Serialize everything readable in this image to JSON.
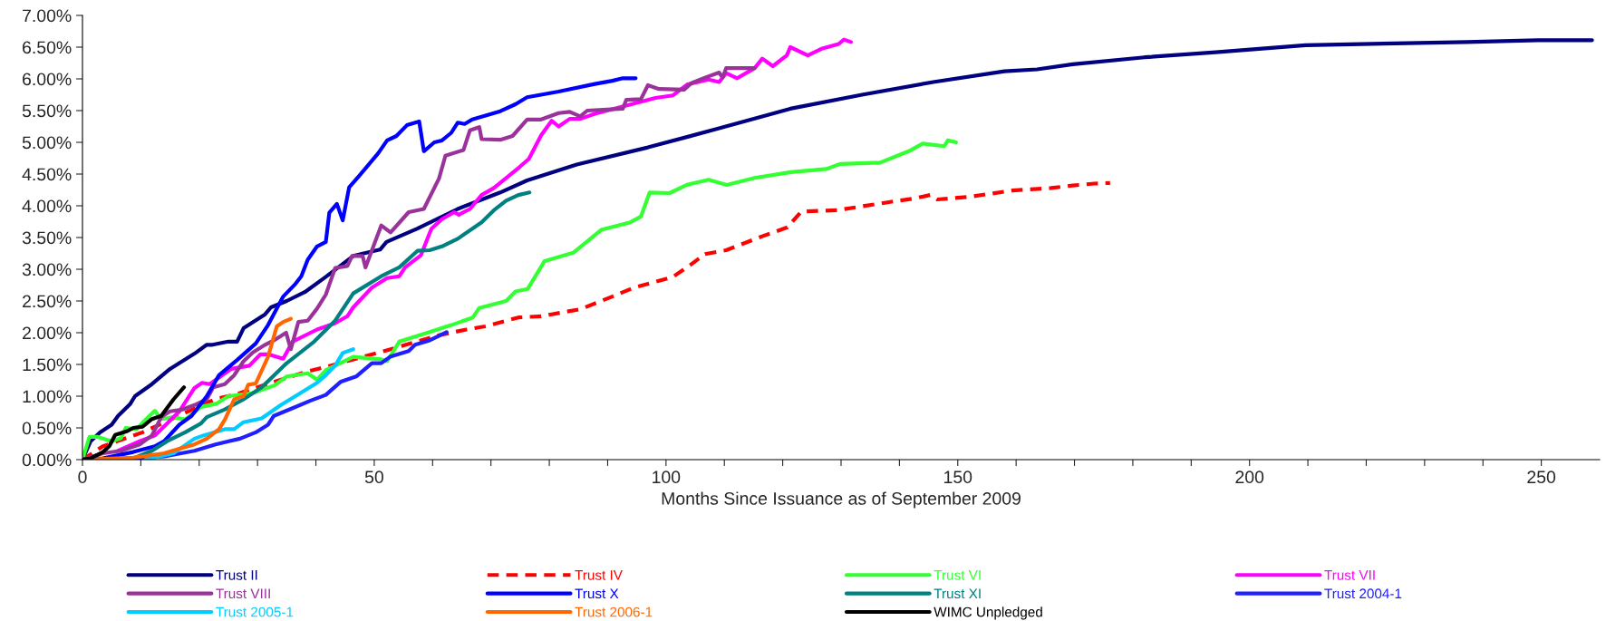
{
  "chart_data": {
    "type": "line",
    "xlabel": "Months Since Issuance as of September 2009",
    "xlim": [
      0,
      260
    ],
    "xticks": [
      0,
      {
        "value": 10,
        "label": null
      },
      {
        "value": 20,
        "label": null
      },
      {
        "value": 30,
        "label": null
      },
      {
        "value": 40,
        "label": null
      },
      50,
      {
        "value": 60,
        "label": null
      },
      {
        "value": 70,
        "label": null
      },
      {
        "value": 80,
        "label": null
      },
      {
        "value": 90,
        "label": null
      },
      100,
      {
        "value": 110,
        "label": null
      },
      {
        "value": 120,
        "label": null
      },
      {
        "value": 130,
        "label": null
      },
      {
        "value": 140,
        "label": null
      },
      150,
      {
        "value": 160,
        "label": null
      },
      {
        "value": 170,
        "label": null
      },
      {
        "value": 180,
        "label": null
      },
      {
        "value": 190,
        "label": null
      },
      200,
      {
        "value": 210,
        "label": null
      },
      {
        "value": 220,
        "label": null
      },
      {
        "value": 230,
        "label": null
      },
      {
        "value": 240,
        "label": null
      },
      250
    ],
    "ylim": [
      0,
      7
    ],
    "yticks": [
      {
        "value": 0,
        "label": "0.00%"
      },
      {
        "value": 0.5,
        "label": "0.50%"
      },
      {
        "value": 1,
        "label": "1.00%"
      },
      {
        "value": 1.5,
        "label": "1.50%"
      },
      {
        "value": 2,
        "label": "2.00%"
      },
      {
        "value": 2.5,
        "label": "2.50%"
      },
      {
        "value": 3,
        "label": "3.00%"
      },
      {
        "value": 3.5,
        "label": "3.50%"
      },
      {
        "value": 4,
        "label": "4.00%"
      },
      {
        "value": 4.5,
        "label": "4.50%"
      },
      {
        "value": 5,
        "label": "5.00%"
      },
      {
        "value": 5.5,
        "label": "5.50%"
      },
      {
        "value": 6,
        "label": "6.00%"
      },
      {
        "value": 6.5,
        "label": "6.50%"
      },
      {
        "value": 7,
        "label": "7.00%"
      }
    ],
    "grid": false,
    "legend": "bottom",
    "marker": "none",
    "series": [
      {
        "name": "Trust II",
        "color": "#000080",
        "x": [
          0,
          1.4,
          3,
          5,
          6.1,
          8.2,
          9,
          11.9,
          15,
          19.2,
          21.3,
          22.3,
          25,
          26.5,
          27.6,
          31.3,
          32.3,
          35,
          38.1,
          41.7,
          46.4,
          51,
          52.1,
          57.4,
          64.3,
          71.6,
          76.2,
          84.7,
          96.9,
          109.1,
          121.3,
          133.6,
          145.8,
          158,
          163.6,
          169.7,
          182,
          194.2,
          209.6,
          224.9,
          237.2,
          249.4,
          258.7
        ],
        "values": [
          0,
          0.29,
          0.43,
          0.55,
          0.69,
          0.88,
          1.0,
          1.19,
          1.43,
          1.67,
          1.81,
          1.81,
          1.86,
          1.86,
          2.07,
          2.29,
          2.4,
          2.5,
          2.64,
          2.88,
          3.21,
          3.31,
          3.43,
          3.64,
          3.95,
          4.21,
          4.4,
          4.65,
          4.92,
          5.22,
          5.53,
          5.75,
          5.95,
          6.12,
          6.15,
          6.23,
          6.34,
          6.42,
          6.53,
          6.56,
          6.58,
          6.61,
          6.61
        ]
      },
      {
        "name": "Trust IV",
        "color": "#ff0000",
        "line_style": "dashed",
        "x": [
          0,
          3.5,
          10.3,
          22.9,
          26,
          32.3,
          38.6,
          41.7,
          51.7,
          61.1,
          65.8,
          69,
          74.7,
          78.6,
          80.4,
          85.3,
          90.8,
          94.5,
          101.2,
          104.2,
          106.7,
          110.3,
          116.5,
          120.8,
          123.2,
          129.3,
          139.1,
          142.2,
          145.3,
          146.5,
          151.9,
          159.3,
          166,
          169.7,
          173.4,
          176.1
        ],
        "values": [
          0,
          0.21,
          0.43,
          0.96,
          1.02,
          1.21,
          1.39,
          1.46,
          1.71,
          1.96,
          2.05,
          2.1,
          2.24,
          2.26,
          2.29,
          2.37,
          2.57,
          2.71,
          2.88,
          3.07,
          3.24,
          3.3,
          3.52,
          3.66,
          3.91,
          3.93,
          4.07,
          4.11,
          4.17,
          4.1,
          4.14,
          4.24,
          4.28,
          4.32,
          4.35,
          4.36
        ]
      },
      {
        "name": "Trust VI",
        "color": "#33ff33",
        "x": [
          0,
          1.2,
          2.5,
          5,
          6.6,
          7.4,
          9.3,
          10.8,
          12.4,
          13.5,
          15.6,
          17.6,
          20.3,
          22.9,
          25,
          29.2,
          32.9,
          35,
          38.6,
          40.2,
          41.7,
          46.4,
          51.2,
          52.2,
          54.3,
          57.4,
          60.1,
          63.2,
          66.9,
          68,
          72.6,
          74.2,
          76.3,
          79.2,
          84.1,
          88.9,
          93.9,
          95.7,
          97.2,
          100.6,
          103.6,
          107.3,
          110.4,
          115.2,
          121.4,
          127.5,
          129.9,
          136.7,
          141.6,
          144,
          147.7,
          148.3,
          149.7
        ],
        "values": [
          0,
          0.36,
          0.36,
          0.29,
          0.34,
          0.5,
          0.48,
          0.63,
          0.77,
          0.64,
          0.67,
          0.63,
          0.83,
          0.88,
          1.0,
          1.05,
          1.17,
          1.31,
          1.36,
          1.26,
          1.41,
          1.62,
          1.58,
          1.55,
          1.86,
          1.95,
          2.03,
          2.12,
          2.24,
          2.39,
          2.5,
          2.65,
          2.69,
          3.13,
          3.26,
          3.62,
          3.74,
          3.83,
          4.21,
          4.2,
          4.33,
          4.41,
          4.33,
          4.44,
          4.53,
          4.58,
          4.66,
          4.68,
          4.86,
          4.98,
          4.94,
          5.03,
          5.0
        ]
      },
      {
        "name": "Trust VII",
        "color": "#ff00ff",
        "x": [
          6.1,
          9.8,
          12.4,
          16.6,
          19.2,
          20.5,
          21.8,
          25.5,
          28.6,
          30.5,
          31.8,
          34.4,
          36,
          40.2,
          43.3,
          45.4,
          46.4,
          49.6,
          52.2,
          54.3,
          55.3,
          58,
          59.8,
          61.6,
          63.7,
          64.5,
          66.4,
          68.4,
          70.5,
          74.9,
          76.5,
          78.6,
          80.4,
          81.6,
          83.5,
          85.3,
          87.8,
          94.5,
          98.2,
          101.2,
          103.6,
          107.3,
          109.1,
          110.3,
          112.2,
          115.2,
          116.5,
          118.3,
          120.7,
          121.3,
          124.3,
          126.8,
          129.6,
          130.5,
          131.7
        ],
        "values": [
          0.14,
          0.29,
          0.38,
          0.76,
          1.13,
          1.21,
          1.19,
          1.43,
          1.48,
          1.66,
          1.66,
          1.59,
          1.86,
          2.05,
          2.15,
          2.26,
          2.4,
          2.71,
          2.86,
          2.89,
          3.03,
          3.22,
          3.64,
          3.79,
          3.9,
          3.86,
          3.95,
          4.17,
          4.28,
          4.61,
          4.74,
          5.11,
          5.34,
          5.25,
          5.37,
          5.37,
          5.45,
          5.61,
          5.7,
          5.74,
          5.91,
          5.99,
          5.95,
          6.09,
          6.01,
          6.17,
          6.32,
          6.2,
          6.37,
          6.5,
          6.37,
          6.48,
          6.55,
          6.62,
          6.58
        ]
      },
      {
        "name": "Trust VIII",
        "color": "#993399",
        "x": [
          0,
          3.5,
          6.6,
          9.8,
          11.9,
          13.5,
          15,
          17.1,
          19.2,
          21.3,
          22.4,
          24.4,
          26,
          27.6,
          29.2,
          31.3,
          32.8,
          34.9,
          35.7,
          37,
          38.6,
          40.2,
          41.7,
          43.3,
          45.4,
          46.2,
          48,
          48.5,
          51.2,
          52.8,
          55.9,
          58.5,
          61.1,
          62.2,
          65.3,
          66.4,
          68,
          68.4,
          71.6,
          73.7,
          76.2,
          78.6,
          81.6,
          83.5,
          85.3,
          86.5,
          92.6,
          93.2,
          95.7,
          96.9,
          98.8,
          103.1,
          104.3,
          106.7,
          109.1,
          109.7,
          110.3,
          115.2
        ],
        "values": [
          0,
          0.1,
          0.14,
          0.24,
          0.38,
          0.67,
          0.76,
          0.79,
          0.86,
          0.95,
          1.14,
          1.19,
          1.33,
          1.55,
          1.69,
          1.81,
          1.88,
          2.0,
          1.74,
          2.17,
          2.19,
          2.38,
          2.6,
          3.02,
          3.05,
          3.21,
          3.21,
          3.03,
          3.69,
          3.58,
          3.9,
          3.95,
          4.43,
          4.79,
          4.88,
          5.19,
          5.24,
          5.05,
          5.04,
          5.1,
          5.36,
          5.36,
          5.46,
          5.48,
          5.41,
          5.5,
          5.53,
          5.67,
          5.68,
          5.9,
          5.84,
          5.83,
          5.93,
          6.02,
          6.1,
          6.02,
          6.17,
          6.17
        ]
      },
      {
        "name": "Trust X",
        "color": "#0000ff",
        "x": [
          0,
          3.5,
          8.7,
          12.4,
          14,
          16.6,
          18.7,
          21.3,
          23.4,
          26.5,
          29.7,
          31.8,
          34.4,
          36.5,
          37.5,
          38.6,
          40.2,
          41.7,
          42.3,
          43.6,
          44.6,
          45.7,
          47.5,
          50.7,
          52.2,
          53.8,
          55.6,
          57.7,
          58.5,
          60.3,
          61.6,
          63.2,
          64.3,
          65.5,
          66.8,
          71.6,
          74.2,
          76.2,
          81.6,
          87.8,
          90.8,
          92.6,
          94.8
        ],
        "values": [
          0,
          0.02,
          0.12,
          0.21,
          0.29,
          0.55,
          0.69,
          1.0,
          1.33,
          1.57,
          1.83,
          2.12,
          2.57,
          2.77,
          2.89,
          3.15,
          3.36,
          3.43,
          3.89,
          4.03,
          3.77,
          4.29,
          4.48,
          4.83,
          5.03,
          5.1,
          5.27,
          5.33,
          4.86,
          5.0,
          5.03,
          5.15,
          5.31,
          5.29,
          5.36,
          5.49,
          5.6,
          5.71,
          5.8,
          5.92,
          5.97,
          6.01,
          6.01
        ]
      },
      {
        "name": "Trust XI",
        "color": "#008080",
        "x": [
          0,
          8.7,
          11.9,
          14.5,
          17.6,
          20.3,
          21.3,
          24.4,
          27.6,
          30.7,
          35,
          39.7,
          43.3,
          46.4,
          51.2,
          54.3,
          57.4,
          59.5,
          61.6,
          64.3,
          68.4,
          70.5,
          72.6,
          74.7,
          76.6
        ],
        "values": [
          0,
          0.02,
          0.14,
          0.29,
          0.43,
          0.57,
          0.67,
          0.79,
          0.95,
          1.14,
          1.52,
          1.86,
          2.19,
          2.62,
          2.89,
          3.03,
          3.29,
          3.3,
          3.36,
          3.48,
          3.74,
          3.93,
          4.08,
          4.17,
          4.21
        ]
      },
      {
        "name": "Trust 2004-1",
        "color": "#1f1fff",
        "x": [
          0,
          8.7,
          14,
          19.2,
          22.8,
          27,
          29.7,
          31.8,
          32.8,
          36,
          39.1,
          41.7,
          44.3,
          46.9,
          49.6,
          51.2,
          52.7,
          55.9,
          57,
          59.5,
          62.4
        ],
        "values": [
          0,
          0.02,
          0.05,
          0.14,
          0.24,
          0.33,
          0.43,
          0.55,
          0.69,
          0.81,
          0.93,
          1.02,
          1.23,
          1.31,
          1.52,
          1.52,
          1.62,
          1.71,
          1.81,
          1.88,
          2.01
        ]
      },
      {
        "name": "Trust 2005-1",
        "color": "#00ccff",
        "x": [
          10.8,
          15.6,
          19.2,
          20.7,
          24.4,
          26,
          27.6,
          30.7,
          34,
          37,
          40.2,
          41.7,
          43.3,
          44.6,
          46.4
        ],
        "values": [
          0,
          0.1,
          0.33,
          0.38,
          0.48,
          0.48,
          0.59,
          0.65,
          0.86,
          1.03,
          1.21,
          1.33,
          1.48,
          1.68,
          1.74
        ]
      },
      {
        "name": "Trust 2006-1",
        "color": "#ff6600",
        "x": [
          0,
          8.7,
          14,
          16.6,
          19.2,
          21.3,
          23.4,
          24.4,
          26,
          27.6,
          28.4,
          29.7,
          31.8,
          33.3,
          34.4,
          35.7
        ],
        "values": [
          0,
          0.03,
          0.1,
          0.17,
          0.24,
          0.33,
          0.48,
          0.63,
          0.95,
          1.0,
          1.18,
          1.2,
          1.62,
          2.1,
          2.17,
          2.22
        ]
      },
      {
        "name": "WIMC Unpledged",
        "color": "#000000",
        "x": [
          0,
          1.4,
          3.5,
          4.6,
          5.6,
          7.7,
          8.7,
          10.3,
          11.9,
          13.5,
          15.6,
          17.4
        ],
        "values": [
          0,
          0.02,
          0.12,
          0.21,
          0.39,
          0.45,
          0.5,
          0.52,
          0.64,
          0.69,
          0.95,
          1.14
        ]
      }
    ]
  }
}
